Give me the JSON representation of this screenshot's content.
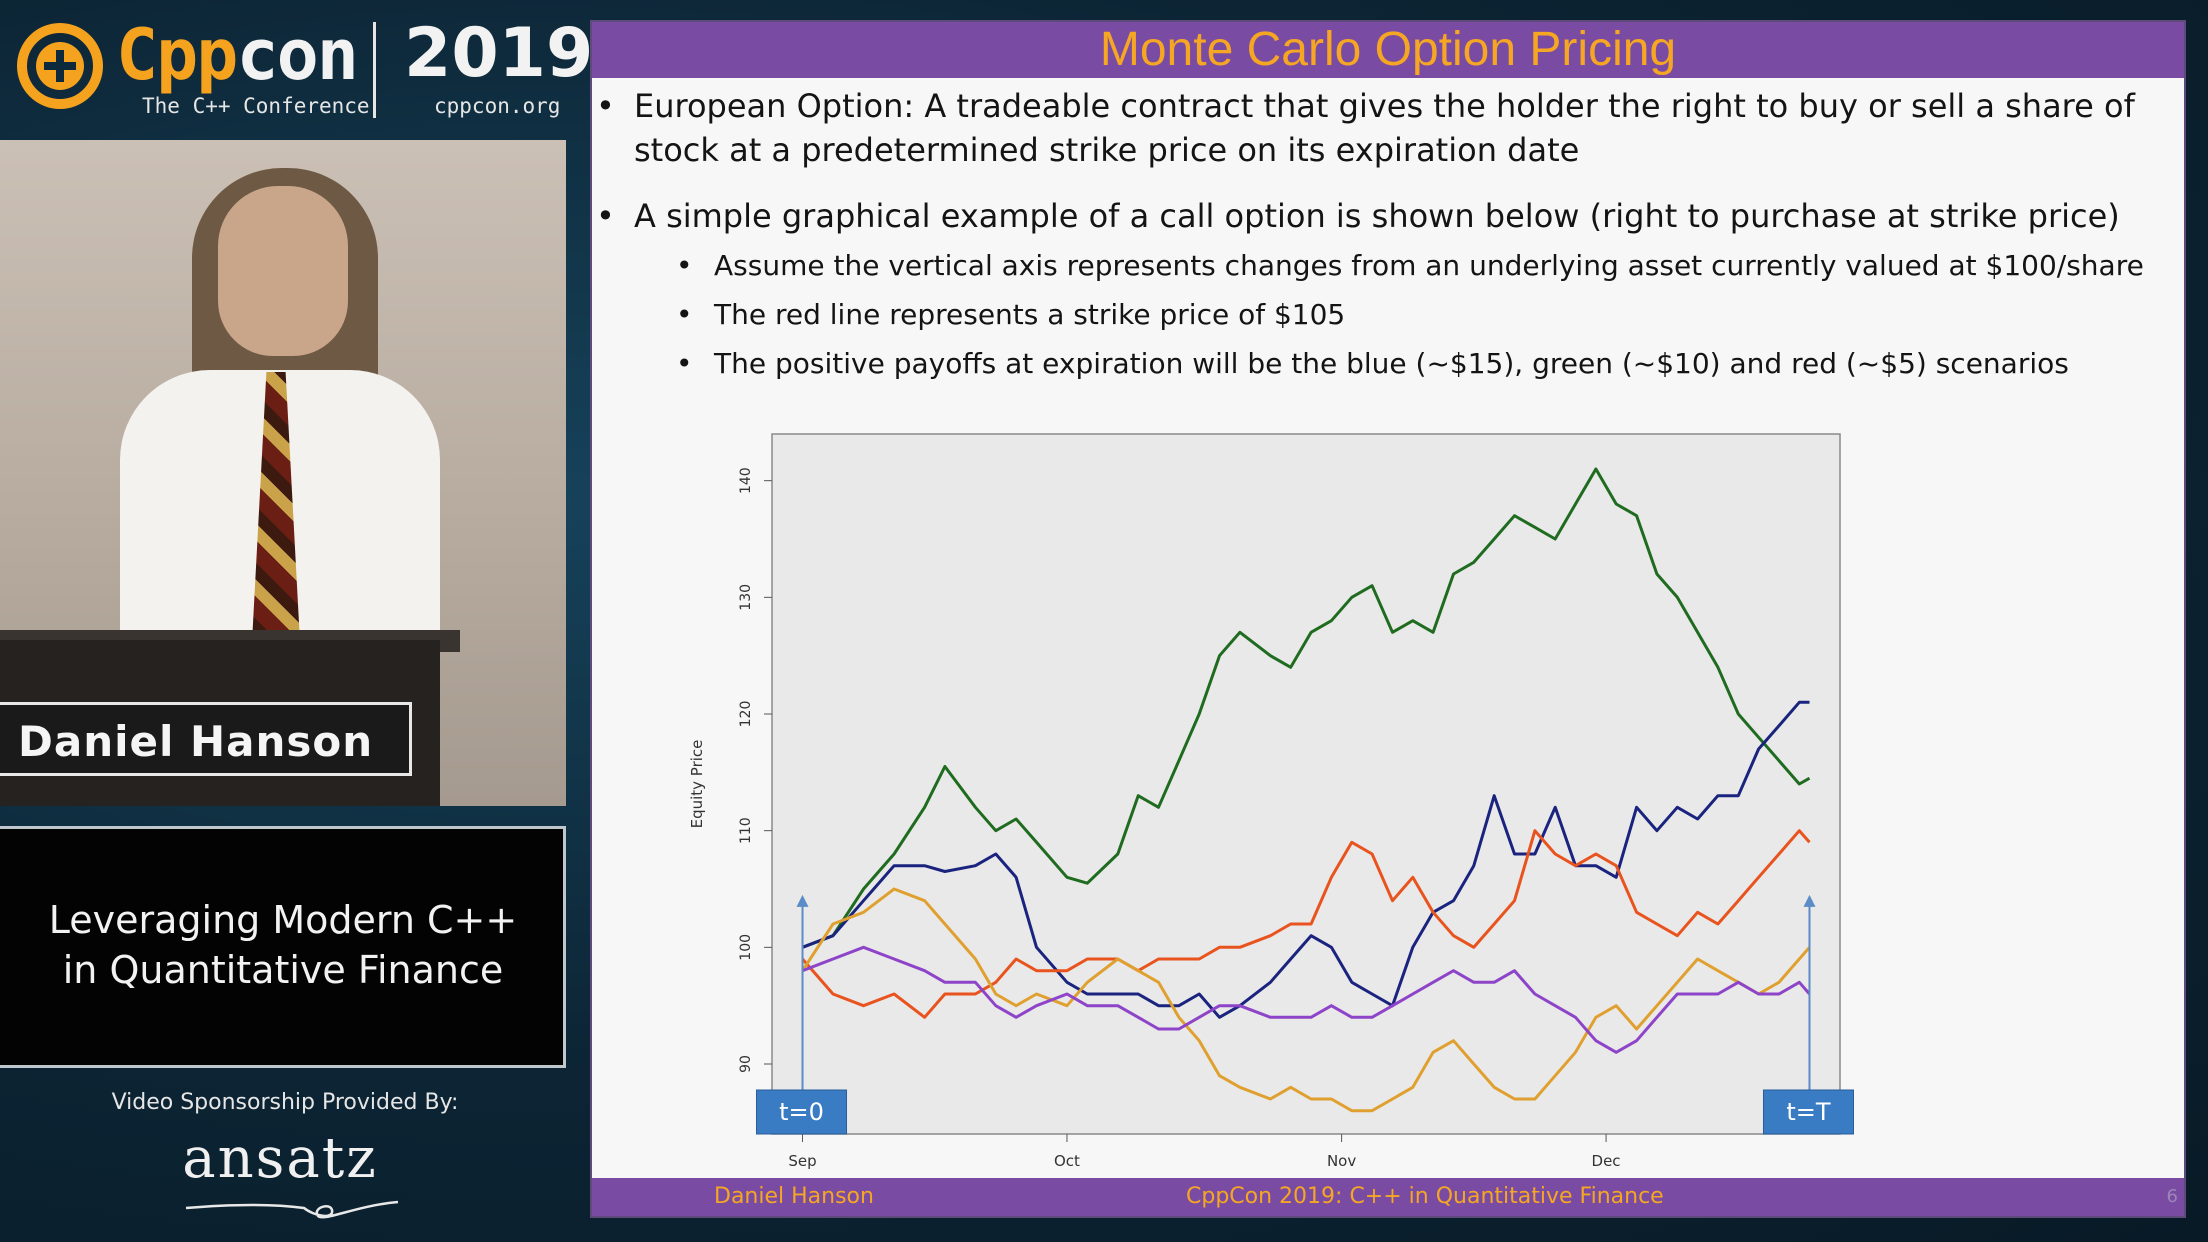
{
  "branding": {
    "logo_prefix": "Cpp",
    "logo_suffix": "con",
    "tagline": "The C++ Conference",
    "year": "2019",
    "website": "cppcon.org",
    "accent": "#f5a21f"
  },
  "speaker": {
    "name": "Daniel Hanson"
  },
  "talk": {
    "title_line1": "Leveraging Modern C++",
    "title_line2": "in Quantitative Finance"
  },
  "sponsor": {
    "label": "Video Sponsorship Provided By:",
    "name": "ansatz"
  },
  "slide": {
    "title": "Monte Carlo Option Pricing",
    "bullets": [
      {
        "line1": "European Option:  A tradeable contract that gives the holder the right to buy or sell a share of",
        "line2": "stock at a predetermined strike price on its expiration date"
      },
      {
        "line1": "A simple graphical example of a call option is shown below (right to purchase at strike price)",
        "sub": [
          "Assume the vertical axis represents changes from an underlying asset currently valued at $100/share",
          "The red line represents a strike price of $105",
          "The positive payoffs at expiration will be the blue (~$15), green (~$10) and red (~$5) scenarios"
        ]
      }
    ],
    "footer_left": "Daniel Hanson",
    "footer_center": "CppCon 2019:  C++ in Quantitative Finance",
    "page_number": "6",
    "header_color": "#7a4ba3",
    "title_color": "#f5a623"
  },
  "chart_data": {
    "type": "line",
    "title": "",
    "xlabel": "",
    "ylabel": "Equity Price",
    "x_ticks": [
      "Sep",
      "Oct",
      "Nov",
      "Dec"
    ],
    "x_tick_positions": [
      0,
      26,
      53,
      79
    ],
    "y_ticks": [
      "90",
      "100",
      "110",
      "120",
      "130",
      "140"
    ],
    "ylim": [
      84,
      144
    ],
    "xlim": [
      -3,
      102
    ],
    "markers": {
      "start_label": "t=0",
      "start_x": 0,
      "end_label": "t=T",
      "end_x": 99,
      "arrow_top": 104.5
    },
    "series": [
      {
        "color": "#1f6b1f",
        "points": [
          [
            0,
            100
          ],
          [
            3,
            101
          ],
          [
            6,
            105
          ],
          [
            9,
            108
          ],
          [
            12,
            112
          ],
          [
            14,
            115.5
          ],
          [
            17,
            112
          ],
          [
            19,
            110
          ],
          [
            21,
            111
          ],
          [
            23,
            109
          ],
          [
            26,
            106
          ],
          [
            28,
            105.5
          ],
          [
            31,
            108
          ],
          [
            33,
            113
          ],
          [
            35,
            112
          ],
          [
            37,
            116
          ],
          [
            39,
            120
          ],
          [
            41,
            125
          ],
          [
            43,
            127
          ],
          [
            46,
            125
          ],
          [
            48,
            124
          ],
          [
            50,
            127
          ],
          [
            52,
            128
          ],
          [
            54,
            130
          ],
          [
            56,
            131
          ],
          [
            58,
            127
          ],
          [
            60,
            128
          ],
          [
            62,
            127
          ],
          [
            64,
            132
          ],
          [
            66,
            133
          ],
          [
            68,
            135
          ],
          [
            70,
            137
          ],
          [
            72,
            136
          ],
          [
            74,
            135
          ],
          [
            76,
            138
          ],
          [
            78,
            141
          ],
          [
            80,
            138
          ],
          [
            82,
            137
          ],
          [
            84,
            132
          ],
          [
            86,
            130
          ],
          [
            88,
            127
          ],
          [
            90,
            124
          ],
          [
            92,
            120
          ],
          [
            94,
            118
          ],
          [
            96,
            116
          ],
          [
            98,
            114
          ],
          [
            99,
            114.5
          ]
        ]
      },
      {
        "color": "#1a237e",
        "points": [
          [
            0,
            100
          ],
          [
            3,
            101
          ],
          [
            6,
            104
          ],
          [
            9,
            107
          ],
          [
            12,
            107
          ],
          [
            14,
            106.5
          ],
          [
            17,
            107
          ],
          [
            19,
            108
          ],
          [
            21,
            106
          ],
          [
            23,
            100
          ],
          [
            26,
            97
          ],
          [
            28,
            96
          ],
          [
            31,
            96
          ],
          [
            33,
            96
          ],
          [
            35,
            95
          ],
          [
            37,
            95
          ],
          [
            39,
            96
          ],
          [
            41,
            94
          ],
          [
            43,
            95
          ],
          [
            46,
            97
          ],
          [
            48,
            99
          ],
          [
            50,
            101
          ],
          [
            52,
            100
          ],
          [
            54,
            97
          ],
          [
            56,
            96
          ],
          [
            58,
            95
          ],
          [
            60,
            100
          ],
          [
            62,
            103
          ],
          [
            64,
            104
          ],
          [
            66,
            107
          ],
          [
            68,
            113
          ],
          [
            70,
            108
          ],
          [
            72,
            108
          ],
          [
            74,
            112
          ],
          [
            76,
            107
          ],
          [
            78,
            107
          ],
          [
            80,
            106
          ],
          [
            82,
            112
          ],
          [
            84,
            110
          ],
          [
            86,
            112
          ],
          [
            88,
            111
          ],
          [
            90,
            113
          ],
          [
            92,
            113
          ],
          [
            94,
            117
          ],
          [
            96,
            119
          ],
          [
            98,
            121
          ],
          [
            99,
            121
          ]
        ]
      },
      {
        "color": "#e8531e",
        "points": [
          [
            0,
            99
          ],
          [
            3,
            96
          ],
          [
            6,
            95
          ],
          [
            9,
            96
          ],
          [
            12,
            94
          ],
          [
            14,
            96
          ],
          [
            17,
            96
          ],
          [
            19,
            97
          ],
          [
            21,
            99
          ],
          [
            23,
            98
          ],
          [
            26,
            98
          ],
          [
            28,
            99
          ],
          [
            31,
            99
          ],
          [
            33,
            98
          ],
          [
            35,
            99
          ],
          [
            37,
            99
          ],
          [
            39,
            99
          ],
          [
            41,
            100
          ],
          [
            43,
            100
          ],
          [
            46,
            101
          ],
          [
            48,
            102
          ],
          [
            50,
            102
          ],
          [
            52,
            106
          ],
          [
            54,
            109
          ],
          [
            56,
            108
          ],
          [
            58,
            104
          ],
          [
            60,
            106
          ],
          [
            62,
            103
          ],
          [
            64,
            101
          ],
          [
            66,
            100
          ],
          [
            68,
            102
          ],
          [
            70,
            104
          ],
          [
            72,
            110
          ],
          [
            74,
            108
          ],
          [
            76,
            107
          ],
          [
            78,
            108
          ],
          [
            80,
            107
          ],
          [
            82,
            103
          ],
          [
            84,
            102
          ],
          [
            86,
            101
          ],
          [
            88,
            103
          ],
          [
            90,
            102
          ],
          [
            92,
            104
          ],
          [
            94,
            106
          ],
          [
            96,
            108
          ],
          [
            98,
            110
          ],
          [
            99,
            109
          ]
        ]
      },
      {
        "color": "#e0a030",
        "points": [
          [
            0,
            98
          ],
          [
            3,
            102
          ],
          [
            6,
            103
          ],
          [
            9,
            105
          ],
          [
            12,
            104
          ],
          [
            14,
            102
          ],
          [
            17,
            99
          ],
          [
            19,
            96
          ],
          [
            21,
            95
          ],
          [
            23,
            96
          ],
          [
            26,
            95
          ],
          [
            28,
            97
          ],
          [
            31,
            99
          ],
          [
            33,
            98
          ],
          [
            35,
            97
          ],
          [
            37,
            94
          ],
          [
            39,
            92
          ],
          [
            41,
            89
          ],
          [
            43,
            88
          ],
          [
            46,
            87
          ],
          [
            48,
            88
          ],
          [
            50,
            87
          ],
          [
            52,
            87
          ],
          [
            54,
            86
          ],
          [
            56,
            86
          ],
          [
            58,
            87
          ],
          [
            60,
            88
          ],
          [
            62,
            91
          ],
          [
            64,
            92
          ],
          [
            66,
            90
          ],
          [
            68,
            88
          ],
          [
            70,
            87
          ],
          [
            72,
            87
          ],
          [
            74,
            89
          ],
          [
            76,
            91
          ],
          [
            78,
            94
          ],
          [
            80,
            95
          ],
          [
            82,
            93
          ],
          [
            84,
            95
          ],
          [
            86,
            97
          ],
          [
            88,
            99
          ],
          [
            90,
            98
          ],
          [
            92,
            97
          ],
          [
            94,
            96
          ],
          [
            96,
            97
          ],
          [
            98,
            99
          ],
          [
            99,
            100
          ]
        ]
      },
      {
        "color": "#8e44c8",
        "points": [
          [
            0,
            98
          ],
          [
            3,
            99
          ],
          [
            6,
            100
          ],
          [
            9,
            99
          ],
          [
            12,
            98
          ],
          [
            14,
            97
          ],
          [
            17,
            97
          ],
          [
            19,
            95
          ],
          [
            21,
            94
          ],
          [
            23,
            95
          ],
          [
            26,
            96
          ],
          [
            28,
            95
          ],
          [
            31,
            95
          ],
          [
            33,
            94
          ],
          [
            35,
            93
          ],
          [
            37,
            93
          ],
          [
            39,
            94
          ],
          [
            41,
            95
          ],
          [
            43,
            95
          ],
          [
            46,
            94
          ],
          [
            48,
            94
          ],
          [
            50,
            94
          ],
          [
            52,
            95
          ],
          [
            54,
            94
          ],
          [
            56,
            94
          ],
          [
            58,
            95
          ],
          [
            60,
            96
          ],
          [
            62,
            97
          ],
          [
            64,
            98
          ],
          [
            66,
            97
          ],
          [
            68,
            97
          ],
          [
            70,
            98
          ],
          [
            72,
            96
          ],
          [
            74,
            95
          ],
          [
            76,
            94
          ],
          [
            78,
            92
          ],
          [
            80,
            91
          ],
          [
            82,
            92
          ],
          [
            84,
            94
          ],
          [
            86,
            96
          ],
          [
            88,
            96
          ],
          [
            90,
            96
          ],
          [
            92,
            97
          ],
          [
            94,
            96
          ],
          [
            96,
            96
          ],
          [
            98,
            97
          ],
          [
            99,
            96
          ]
        ]
      }
    ]
  }
}
